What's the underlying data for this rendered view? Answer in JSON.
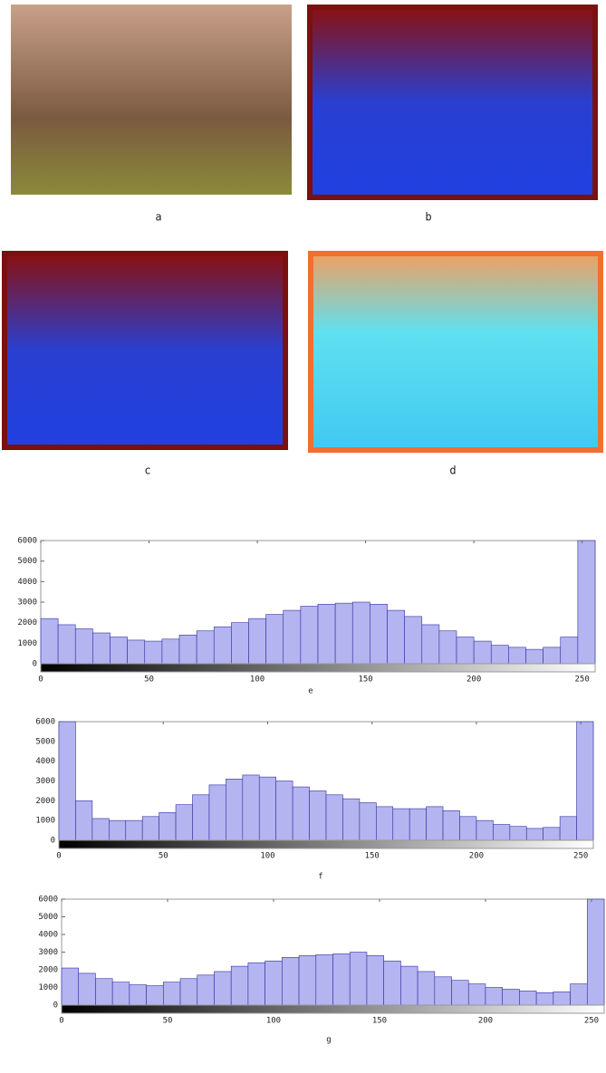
{
  "figure": {
    "panels": [
      {
        "label": "a"
      },
      {
        "label": "b"
      },
      {
        "label": "c"
      },
      {
        "label": "d"
      }
    ]
  },
  "chart_data": [
    {
      "type": "histogram",
      "caption": "e",
      "color": "#b4b4f0",
      "bins": [
        0,
        8,
        16,
        24,
        32,
        40,
        48,
        56,
        64,
        72,
        80,
        88,
        96,
        104,
        112,
        120,
        128,
        136,
        144,
        152,
        160,
        168,
        176,
        184,
        192,
        200,
        208,
        216,
        224,
        232,
        240,
        248,
        256
      ],
      "values": [
        2200,
        1900,
        1700,
        1500,
        1300,
        1150,
        1100,
        1200,
        1400,
        1600,
        1800,
        2000,
        2200,
        2400,
        2600,
        2800,
        2900,
        2950,
        3000,
        2900,
        2600,
        2300,
        1900,
        1600,
        1300,
        1100,
        900,
        800,
        700,
        800,
        1300,
        6000
      ],
      "xlim": [
        0,
        256
      ],
      "xticks": [
        0,
        50,
        100,
        150,
        200,
        250
      ],
      "ylim": [
        0,
        6000
      ],
      "yticks": [
        0,
        1000,
        2000,
        3000,
        4000,
        5000,
        6000
      ]
    },
    {
      "type": "histogram",
      "caption": "f",
      "color": "#b4b4f0",
      "bins": [
        0,
        8,
        16,
        24,
        32,
        40,
        48,
        56,
        64,
        72,
        80,
        88,
        96,
        104,
        112,
        120,
        128,
        136,
        144,
        152,
        160,
        168,
        176,
        184,
        192,
        200,
        208,
        216,
        224,
        232,
        240,
        248,
        256
      ],
      "values": [
        6000,
        2000,
        1100,
        1000,
        1000,
        1200,
        1400,
        1800,
        2300,
        2800,
        3100,
        3300,
        3200,
        3000,
        2700,
        2500,
        2300,
        2100,
        1900,
        1700,
        1600,
        1600,
        1700,
        1500,
        1200,
        1000,
        800,
        700,
        600,
        650,
        1200,
        6000
      ],
      "xlim": [
        0,
        256
      ],
      "xticks": [
        0,
        50,
        100,
        150,
        200,
        250
      ],
      "ylim": [
        0,
        6000
      ],
      "yticks": [
        0,
        1000,
        2000,
        3000,
        4000,
        5000,
        6000
      ]
    },
    {
      "type": "histogram",
      "caption": "g",
      "color": "#b4b4f0",
      "bins": [
        0,
        8,
        16,
        24,
        32,
        40,
        48,
        56,
        64,
        72,
        80,
        88,
        96,
        104,
        112,
        120,
        128,
        136,
        144,
        152,
        160,
        168,
        176,
        184,
        192,
        200,
        208,
        216,
        224,
        232,
        240,
        248,
        256
      ],
      "values": [
        2100,
        1800,
        1500,
        1300,
        1150,
        1100,
        1300,
        1500,
        1700,
        1900,
        2200,
        2400,
        2500,
        2700,
        2800,
        2850,
        2900,
        3000,
        2800,
        2500,
        2200,
        1900,
        1600,
        1400,
        1200,
        1000,
        900,
        800,
        700,
        750,
        1200,
        6000
      ],
      "xlim": [
        0,
        256
      ],
      "xticks": [
        0,
        50,
        100,
        150,
        200,
        250
      ],
      "ylim": [
        0,
        6000
      ],
      "yticks": [
        0,
        1000,
        2000,
        3000,
        4000,
        5000,
        6000
      ]
    }
  ]
}
